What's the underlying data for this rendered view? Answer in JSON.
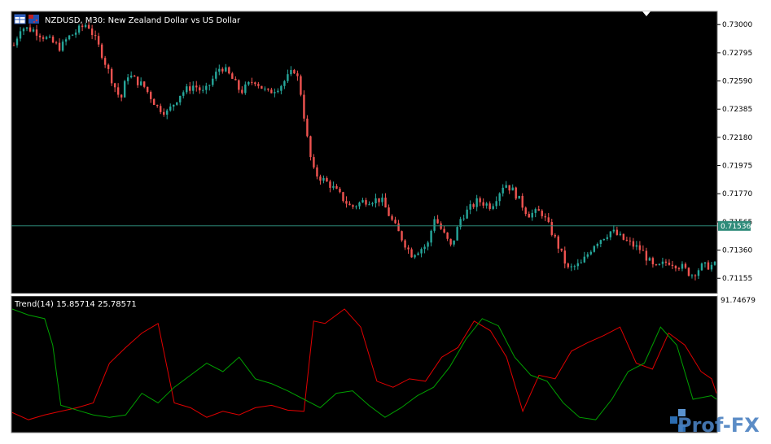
{
  "chart_window": {
    "title": "NZDUSD, M30:  New Zealand Dollar vs US Dollar",
    "icons": [
      "table-icon",
      "flag-icon"
    ],
    "colors": {
      "background": "#000000",
      "bull": "#26a69a",
      "bear": "#ef5350",
      "axis_bg": "#ffffff",
      "bid_line": "#2e8b7a"
    }
  },
  "price_axis": {
    "ticks": [
      "0.73000",
      "0.72795",
      "0.72590",
      "0.72385",
      "0.72180",
      "0.71975",
      "0.71770",
      "0.71565",
      "0.71360",
      "0.71155"
    ],
    "current_price": "0.71536"
  },
  "indicator": {
    "label": "Trend(14) 15.85714 25.78571",
    "axis_top": "91.74679",
    "series": [
      {
        "name": "",
        "color": "#e00000"
      },
      {
        "name": "",
        "color": "#00a000"
      }
    ]
  },
  "watermark": {
    "text": "Prof-FX"
  },
  "chart_data": {
    "type": "candlestick",
    "title": "NZDUSD, M30:  New Zealand Dollar vs US Dollar",
    "ylim": [
      0.7105,
      0.7309
    ],
    "y_ticks": [
      0.73,
      0.72795,
      0.7259,
      0.72385,
      0.7218,
      0.71975,
      0.7177,
      0.71565,
      0.7136,
      0.71155
    ],
    "current_price": 0.71536,
    "anchors": [
      [
        0,
        0.7285
      ],
      [
        4,
        0.7298
      ],
      [
        12,
        0.7296
      ],
      [
        28,
        0.7283
      ],
      [
        32,
        0.729
      ],
      [
        44,
        0.7301
      ],
      [
        52,
        0.7281
      ],
      [
        58,
        0.7262
      ],
      [
        64,
        0.7245
      ],
      [
        68,
        0.7264
      ],
      [
        78,
        0.7255
      ],
      [
        86,
        0.724
      ],
      [
        92,
        0.7236
      ],
      [
        100,
        0.725
      ],
      [
        108,
        0.7256
      ],
      [
        114,
        0.725
      ],
      [
        124,
        0.727
      ],
      [
        130,
        0.7262
      ],
      [
        136,
        0.7251
      ],
      [
        144,
        0.726
      ],
      [
        152,
        0.725
      ],
      [
        160,
        0.7256
      ],
      [
        168,
        0.7267
      ],
      [
        171,
        0.7258
      ],
      [
        177,
        0.7207
      ],
      [
        180,
        0.7192
      ],
      [
        190,
        0.7183
      ],
      [
        202,
        0.7167
      ],
      [
        210,
        0.7172
      ],
      [
        220,
        0.7173
      ],
      [
        228,
        0.7154
      ],
      [
        238,
        0.7133
      ],
      [
        248,
        0.714
      ],
      [
        252,
        0.716
      ],
      [
        262,
        0.7138
      ],
      [
        268,
        0.716
      ],
      [
        278,
        0.7172
      ],
      [
        286,
        0.7168
      ],
      [
        294,
        0.7185
      ],
      [
        300,
        0.7178
      ],
      [
        308,
        0.7162
      ],
      [
        316,
        0.7164
      ],
      [
        324,
        0.7145
      ],
      [
        332,
        0.7122
      ],
      [
        340,
        0.7126
      ],
      [
        348,
        0.7141
      ],
      [
        358,
        0.715
      ],
      [
        366,
        0.7143
      ],
      [
        376,
        0.7136
      ],
      [
        384,
        0.7122
      ],
      [
        392,
        0.7128
      ],
      [
        400,
        0.7124
      ],
      [
        406,
        0.7118
      ],
      [
        412,
        0.7124
      ],
      [
        420,
        0.7125
      ]
    ],
    "indicator": {
      "name": "Trend(14)",
      "values": [
        15.85714,
        25.78571
      ],
      "ymax": 91.74679,
      "series": [
        {
          "name": "",
          "color": "#e00000",
          "points": [
            [
              0,
              14
            ],
            [
              20,
              8
            ],
            [
              40,
              12
            ],
            [
              60,
              15
            ],
            [
              80,
              18
            ],
            [
              100,
              22
            ],
            [
              120,
              55
            ],
            [
              140,
              68
            ],
            [
              160,
              80
            ],
            [
              180,
              88
            ],
            [
              200,
              22
            ],
            [
              220,
              18
            ],
            [
              240,
              10
            ],
            [
              260,
              15
            ],
            [
              280,
              12
            ],
            [
              300,
              18
            ],
            [
              320,
              20
            ],
            [
              340,
              16
            ],
            [
              360,
              15
            ],
            [
              372,
              90
            ],
            [
              386,
              88
            ],
            [
              410,
              100
            ],
            [
              430,
              85
            ],
            [
              450,
              40
            ],
            [
              470,
              35
            ],
            [
              490,
              42
            ],
            [
              510,
              40
            ],
            [
              530,
              60
            ],
            [
              550,
              68
            ],
            [
              570,
              90
            ],
            [
              590,
              82
            ],
            [
              610,
              60
            ],
            [
              630,
              15
            ],
            [
              650,
              45
            ],
            [
              670,
              42
            ],
            [
              690,
              65
            ],
            [
              710,
              72
            ],
            [
              730,
              78
            ],
            [
              750,
              85
            ],
            [
              770,
              55
            ],
            [
              790,
              50
            ],
            [
              810,
              80
            ],
            [
              830,
              70
            ],
            [
              850,
              48
            ],
            [
              863,
              42
            ],
            [
              869,
              30
            ]
          ]
        },
        {
          "name": "",
          "color": "#00a000",
          "points": [
            [
              0,
              100
            ],
            [
              20,
              95
            ],
            [
              40,
              92
            ],
            [
              50,
              70
            ],
            [
              60,
              20
            ],
            [
              80,
              16
            ],
            [
              100,
              12
            ],
            [
              120,
              10
            ],
            [
              140,
              12
            ],
            [
              160,
              30
            ],
            [
              180,
              22
            ],
            [
              200,
              35
            ],
            [
              220,
              45
            ],
            [
              240,
              55
            ],
            [
              260,
              48
            ],
            [
              280,
              60
            ],
            [
              300,
              42
            ],
            [
              320,
              38
            ],
            [
              340,
              32
            ],
            [
              360,
              25
            ],
            [
              380,
              18
            ],
            [
              400,
              30
            ],
            [
              420,
              32
            ],
            [
              440,
              20
            ],
            [
              460,
              10
            ],
            [
              480,
              18
            ],
            [
              500,
              28
            ],
            [
              520,
              35
            ],
            [
              540,
              52
            ],
            [
              560,
              75
            ],
            [
              580,
              92
            ],
            [
              600,
              86
            ],
            [
              620,
              60
            ],
            [
              640,
              45
            ],
            [
              660,
              40
            ],
            [
              680,
              22
            ],
            [
              700,
              10
            ],
            [
              720,
              8
            ],
            [
              740,
              25
            ],
            [
              760,
              48
            ],
            [
              780,
              55
            ],
            [
              800,
              85
            ],
            [
              820,
              70
            ],
            [
              840,
              25
            ],
            [
              863,
              28
            ],
            [
              869,
              25
            ]
          ]
        }
      ]
    }
  }
}
